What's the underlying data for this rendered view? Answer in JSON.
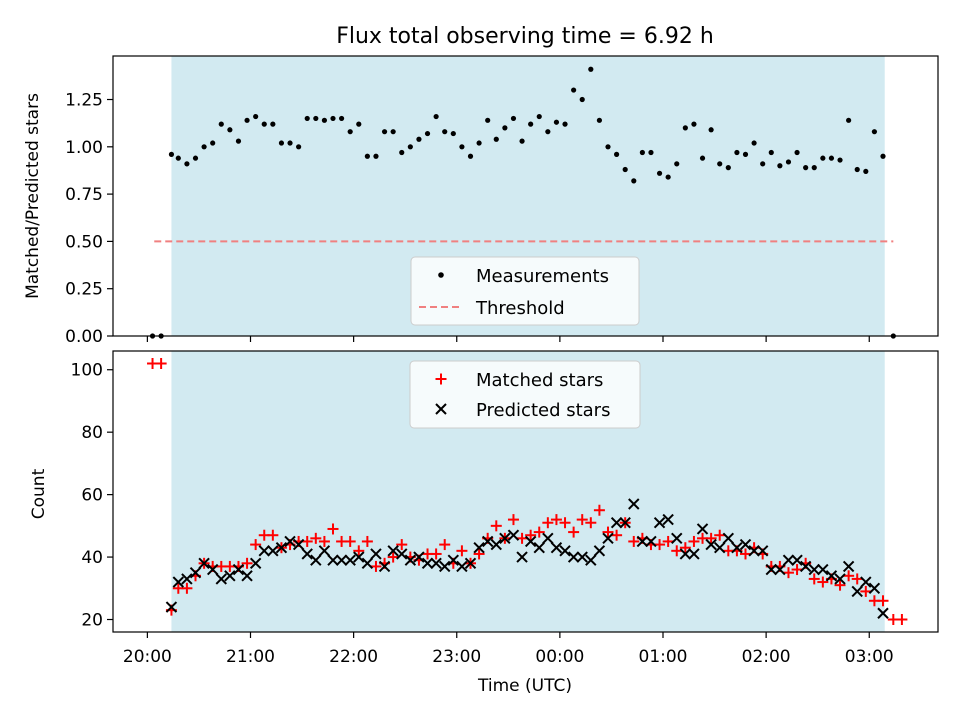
{
  "title": "Flux total observing time = 6.92 h",
  "colors": {
    "observing_span": "#add8e6",
    "measurement": "#000000",
    "threshold": "#f08080",
    "matched": "#ff0000",
    "predicted": "#000000"
  },
  "chart_data": [
    {
      "type": "scatter",
      "panel": "top",
      "ylabel": "Matched/Predicted stars",
      "xlabel": "",
      "xlim": [
        "19:40",
        "03:40"
      ],
      "ylim": [
        0,
        1.48
      ],
      "yticks": [
        "0.00",
        "0.25",
        "0.50",
        "0.75",
        "1.00",
        "1.25"
      ],
      "grid": false,
      "legend_position": "bottom-center",
      "shaded_span": {
        "start": "20:14",
        "end": "03:09"
      },
      "threshold": {
        "name": "Threshold",
        "y": 0.5,
        "x_start": "20:04",
        "x_end": "03:14"
      },
      "series": [
        {
          "name": "Measurements",
          "marker": "dot",
          "points": [
            [
              "20:03",
              0.0
            ],
            [
              "20:08",
              0.0
            ],
            [
              "20:14",
              0.96
            ],
            [
              "20:18",
              0.94
            ],
            [
              "20:23",
              0.91
            ],
            [
              "20:28",
              0.94
            ],
            [
              "20:33",
              1.0
            ],
            [
              "20:38",
              1.02
            ],
            [
              "20:43",
              1.12
            ],
            [
              "20:48",
              1.09
            ],
            [
              "20:53",
              1.03
            ],
            [
              "20:58",
              1.14
            ],
            [
              "21:03",
              1.16
            ],
            [
              "21:08",
              1.12
            ],
            [
              "21:13",
              1.12
            ],
            [
              "21:18",
              1.02
            ],
            [
              "21:23",
              1.02
            ],
            [
              "21:28",
              1.0
            ],
            [
              "21:33",
              1.15
            ],
            [
              "21:38",
              1.15
            ],
            [
              "21:43",
              1.14
            ],
            [
              "21:48",
              1.15
            ],
            [
              "21:53",
              1.15
            ],
            [
              "21:58",
              1.08
            ],
            [
              "22:03",
              1.12
            ],
            [
              "22:08",
              0.95
            ],
            [
              "22:13",
              0.95
            ],
            [
              "22:18",
              1.08
            ],
            [
              "22:23",
              1.08
            ],
            [
              "22:28",
              0.97
            ],
            [
              "22:33",
              1.0
            ],
            [
              "22:38",
              1.04
            ],
            [
              "22:43",
              1.07
            ],
            [
              "22:48",
              1.16
            ],
            [
              "22:53",
              1.08
            ],
            [
              "22:58",
              1.07
            ],
            [
              "23:03",
              1.0
            ],
            [
              "23:08",
              0.95
            ],
            [
              "23:13",
              1.02
            ],
            [
              "23:18",
              1.14
            ],
            [
              "23:23",
              1.04
            ],
            [
              "23:28",
              1.1
            ],
            [
              "23:33",
              1.15
            ],
            [
              "23:38",
              1.03
            ],
            [
              "23:43",
              1.12
            ],
            [
              "23:48",
              1.16
            ],
            [
              "23:53",
              1.08
            ],
            [
              "23:58",
              1.13
            ],
            [
              "00:03",
              1.12
            ],
            [
              "00:08",
              1.3
            ],
            [
              "00:13",
              1.25
            ],
            [
              "00:18",
              1.41
            ],
            [
              "00:23",
              1.14
            ],
            [
              "00:28",
              1.0
            ],
            [
              "00:33",
              0.96
            ],
            [
              "00:38",
              0.88
            ],
            [
              "00:43",
              0.82
            ],
            [
              "00:48",
              0.97
            ],
            [
              "00:53",
              0.97
            ],
            [
              "00:58",
              0.86
            ],
            [
              "01:03",
              0.84
            ],
            [
              "01:08",
              0.91
            ],
            [
              "01:13",
              1.1
            ],
            [
              "01:18",
              1.12
            ],
            [
              "01:23",
              0.94
            ],
            [
              "01:28",
              1.09
            ],
            [
              "01:33",
              0.91
            ],
            [
              "01:38",
              0.89
            ],
            [
              "01:43",
              0.97
            ],
            [
              "01:48",
              0.96
            ],
            [
              "01:53",
              1.02
            ],
            [
              "01:58",
              0.91
            ],
            [
              "02:03",
              0.97
            ],
            [
              "02:08",
              0.9
            ],
            [
              "02:13",
              0.92
            ],
            [
              "02:18",
              0.97
            ],
            [
              "02:23",
              0.89
            ],
            [
              "02:28",
              0.89
            ],
            [
              "02:33",
              0.94
            ],
            [
              "02:38",
              0.94
            ],
            [
              "02:43",
              0.93
            ],
            [
              "02:48",
              1.14
            ],
            [
              "02:53",
              0.88
            ],
            [
              "02:58",
              0.87
            ],
            [
              "03:03",
              1.08
            ],
            [
              "03:08",
              0.95
            ],
            [
              "03:14",
              0.0
            ]
          ]
        }
      ]
    },
    {
      "type": "scatter",
      "panel": "bottom",
      "xlabel": "Time (UTC)",
      "ylabel": "Count",
      "xlim": [
        "19:40",
        "03:40"
      ],
      "ylim": [
        16,
        106
      ],
      "xticks": [
        "20:00",
        "21:00",
        "22:00",
        "23:00",
        "00:00",
        "01:00",
        "02:00",
        "03:00"
      ],
      "yticks": [
        "20",
        "40",
        "60",
        "80",
        "100"
      ],
      "grid": false,
      "legend_position": "top-center",
      "shaded_span": {
        "start": "20:14",
        "end": "03:09"
      },
      "series": [
        {
          "name": "Matched stars",
          "marker": "plus",
          "points": [
            [
              "20:03",
              102
            ],
            [
              "20:08",
              102
            ],
            [
              "20:14",
              23
            ],
            [
              "20:18",
              30
            ],
            [
              "20:23",
              30
            ],
            [
              "20:28",
              34
            ],
            [
              "20:33",
              38
            ],
            [
              "20:38",
              37
            ],
            [
              "20:43",
              37
            ],
            [
              "20:48",
              37
            ],
            [
              "20:53",
              37
            ],
            [
              "20:58",
              38
            ],
            [
              "21:03",
              44
            ],
            [
              "21:08",
              47
            ],
            [
              "21:13",
              47
            ],
            [
              "21:18",
              43
            ],
            [
              "21:23",
              44
            ],
            [
              "21:28",
              45
            ],
            [
              "21:33",
              45
            ],
            [
              "21:38",
              46
            ],
            [
              "21:43",
              45
            ],
            [
              "21:48",
              49
            ],
            [
              "21:53",
              45
            ],
            [
              "21:58",
              45
            ],
            [
              "22:03",
              42
            ],
            [
              "22:08",
              45
            ],
            [
              "22:13",
              37
            ],
            [
              "22:18",
              38
            ],
            [
              "22:23",
              40
            ],
            [
              "22:28",
              44
            ],
            [
              "22:33",
              40
            ],
            [
              "22:38",
              39
            ],
            [
              "22:43",
              41
            ],
            [
              "22:48",
              41
            ],
            [
              "22:53",
              44
            ],
            [
              "22:58",
              38
            ],
            [
              "23:03",
              42
            ],
            [
              "23:08",
              38
            ],
            [
              "23:13",
              41
            ],
            [
              "23:18",
              46
            ],
            [
              "23:23",
              50
            ],
            [
              "23:28",
              46
            ],
            [
              "23:33",
              52
            ],
            [
              "23:38",
              46
            ],
            [
              "23:43",
              47
            ],
            [
              "23:48",
              48
            ],
            [
              "23:53",
              51
            ],
            [
              "23:58",
              52
            ],
            [
              "00:03",
              51
            ],
            [
              "00:08",
              48
            ],
            [
              "00:13",
              52
            ],
            [
              "00:18",
              51
            ],
            [
              "00:23",
              55
            ],
            [
              "00:28",
              48
            ],
            [
              "00:33",
              47
            ],
            [
              "00:38",
              51
            ],
            [
              "00:43",
              45
            ],
            [
              "00:48",
              46
            ],
            [
              "00:53",
              44
            ],
            [
              "00:58",
              44
            ],
            [
              "01:03",
              45
            ],
            [
              "01:08",
              42
            ],
            [
              "01:13",
              43
            ],
            [
              "01:18",
              45
            ],
            [
              "01:23",
              46
            ],
            [
              "01:28",
              46
            ],
            [
              "01:33",
              47
            ],
            [
              "01:38",
              42
            ],
            [
              "01:43",
              42
            ],
            [
              "01:48",
              41
            ],
            [
              "01:53",
              43
            ],
            [
              "01:58",
              41
            ],
            [
              "02:03",
              37
            ],
            [
              "02:08",
              37
            ],
            [
              "02:13",
              35
            ],
            [
              "02:18",
              36
            ],
            [
              "02:23",
              38
            ],
            [
              "02:28",
              33
            ],
            [
              "02:33",
              32
            ],
            [
              "02:38",
              33
            ],
            [
              "02:43",
              31
            ],
            [
              "02:48",
              34
            ],
            [
              "02:53",
              33
            ],
            [
              "02:58",
              29
            ],
            [
              "03:03",
              26
            ],
            [
              "03:08",
              26
            ],
            [
              "03:14",
              20
            ],
            [
              "03:19",
              20
            ]
          ]
        },
        {
          "name": "Predicted stars",
          "marker": "x",
          "points": [
            [
              "20:14",
              24
            ],
            [
              "20:18",
              32
            ],
            [
              "20:23",
              33
            ],
            [
              "20:28",
              35
            ],
            [
              "20:33",
              38
            ],
            [
              "20:38",
              36
            ],
            [
              "20:43",
              33
            ],
            [
              "20:48",
              34
            ],
            [
              "20:53",
              36
            ],
            [
              "20:58",
              34
            ],
            [
              "21:03",
              38
            ],
            [
              "21:08",
              42
            ],
            [
              "21:13",
              42
            ],
            [
              "21:18",
              43
            ],
            [
              "21:23",
              45
            ],
            [
              "21:28",
              44
            ],
            [
              "21:33",
              41
            ],
            [
              "21:38",
              39
            ],
            [
              "21:43",
              42
            ],
            [
              "21:48",
              39
            ],
            [
              "21:53",
              39
            ],
            [
              "21:58",
              39
            ],
            [
              "22:03",
              40
            ],
            [
              "22:08",
              38
            ],
            [
              "22:13",
              41
            ],
            [
              "22:18",
              37
            ],
            [
              "22:23",
              42
            ],
            [
              "22:28",
              41
            ],
            [
              "22:33",
              39
            ],
            [
              "22:38",
              40
            ],
            [
              "22:43",
              38
            ],
            [
              "22:48",
              38
            ],
            [
              "22:53",
              37
            ],
            [
              "22:58",
              39
            ],
            [
              "23:03",
              37
            ],
            [
              "23:08",
              38
            ],
            [
              "23:13",
              43
            ],
            [
              "23:18",
              45
            ],
            [
              "23:23",
              44
            ],
            [
              "23:28",
              46
            ],
            [
              "23:33",
              47
            ],
            [
              "23:38",
              40
            ],
            [
              "23:43",
              45
            ],
            [
              "23:48",
              43
            ],
            [
              "23:53",
              46
            ],
            [
              "23:58",
              43
            ],
            [
              "00:03",
              42
            ],
            [
              "00:08",
              40
            ],
            [
              "00:13",
              40
            ],
            [
              "00:18",
              39
            ],
            [
              "00:23",
              42
            ],
            [
              "00:28",
              46
            ],
            [
              "00:33",
              51
            ],
            [
              "00:38",
              51
            ],
            [
              "00:43",
              57
            ],
            [
              "00:48",
              45
            ],
            [
              "00:53",
              45
            ],
            [
              "00:58",
              51
            ],
            [
              "01:03",
              52
            ],
            [
              "01:08",
              46
            ],
            [
              "01:13",
              41
            ],
            [
              "01:18",
              41
            ],
            [
              "01:23",
              49
            ],
            [
              "01:28",
              44
            ],
            [
              "01:33",
              43
            ],
            [
              "01:38",
              46
            ],
            [
              "01:43",
              43
            ],
            [
              "01:48",
              44
            ],
            [
              "01:53",
              42
            ],
            [
              "01:58",
              42
            ],
            [
              "02:03",
              36
            ],
            [
              "02:08",
              36
            ],
            [
              "02:13",
              39
            ],
            [
              "02:18",
              39
            ],
            [
              "02:23",
              37
            ],
            [
              "02:28",
              36
            ],
            [
              "02:33",
              36
            ],
            [
              "02:38",
              34
            ],
            [
              "02:43",
              33
            ],
            [
              "02:48",
              37
            ],
            [
              "02:53",
              29
            ],
            [
              "02:58",
              32
            ],
            [
              "03:03",
              30
            ],
            [
              "03:08",
              22
            ]
          ]
        }
      ]
    }
  ]
}
